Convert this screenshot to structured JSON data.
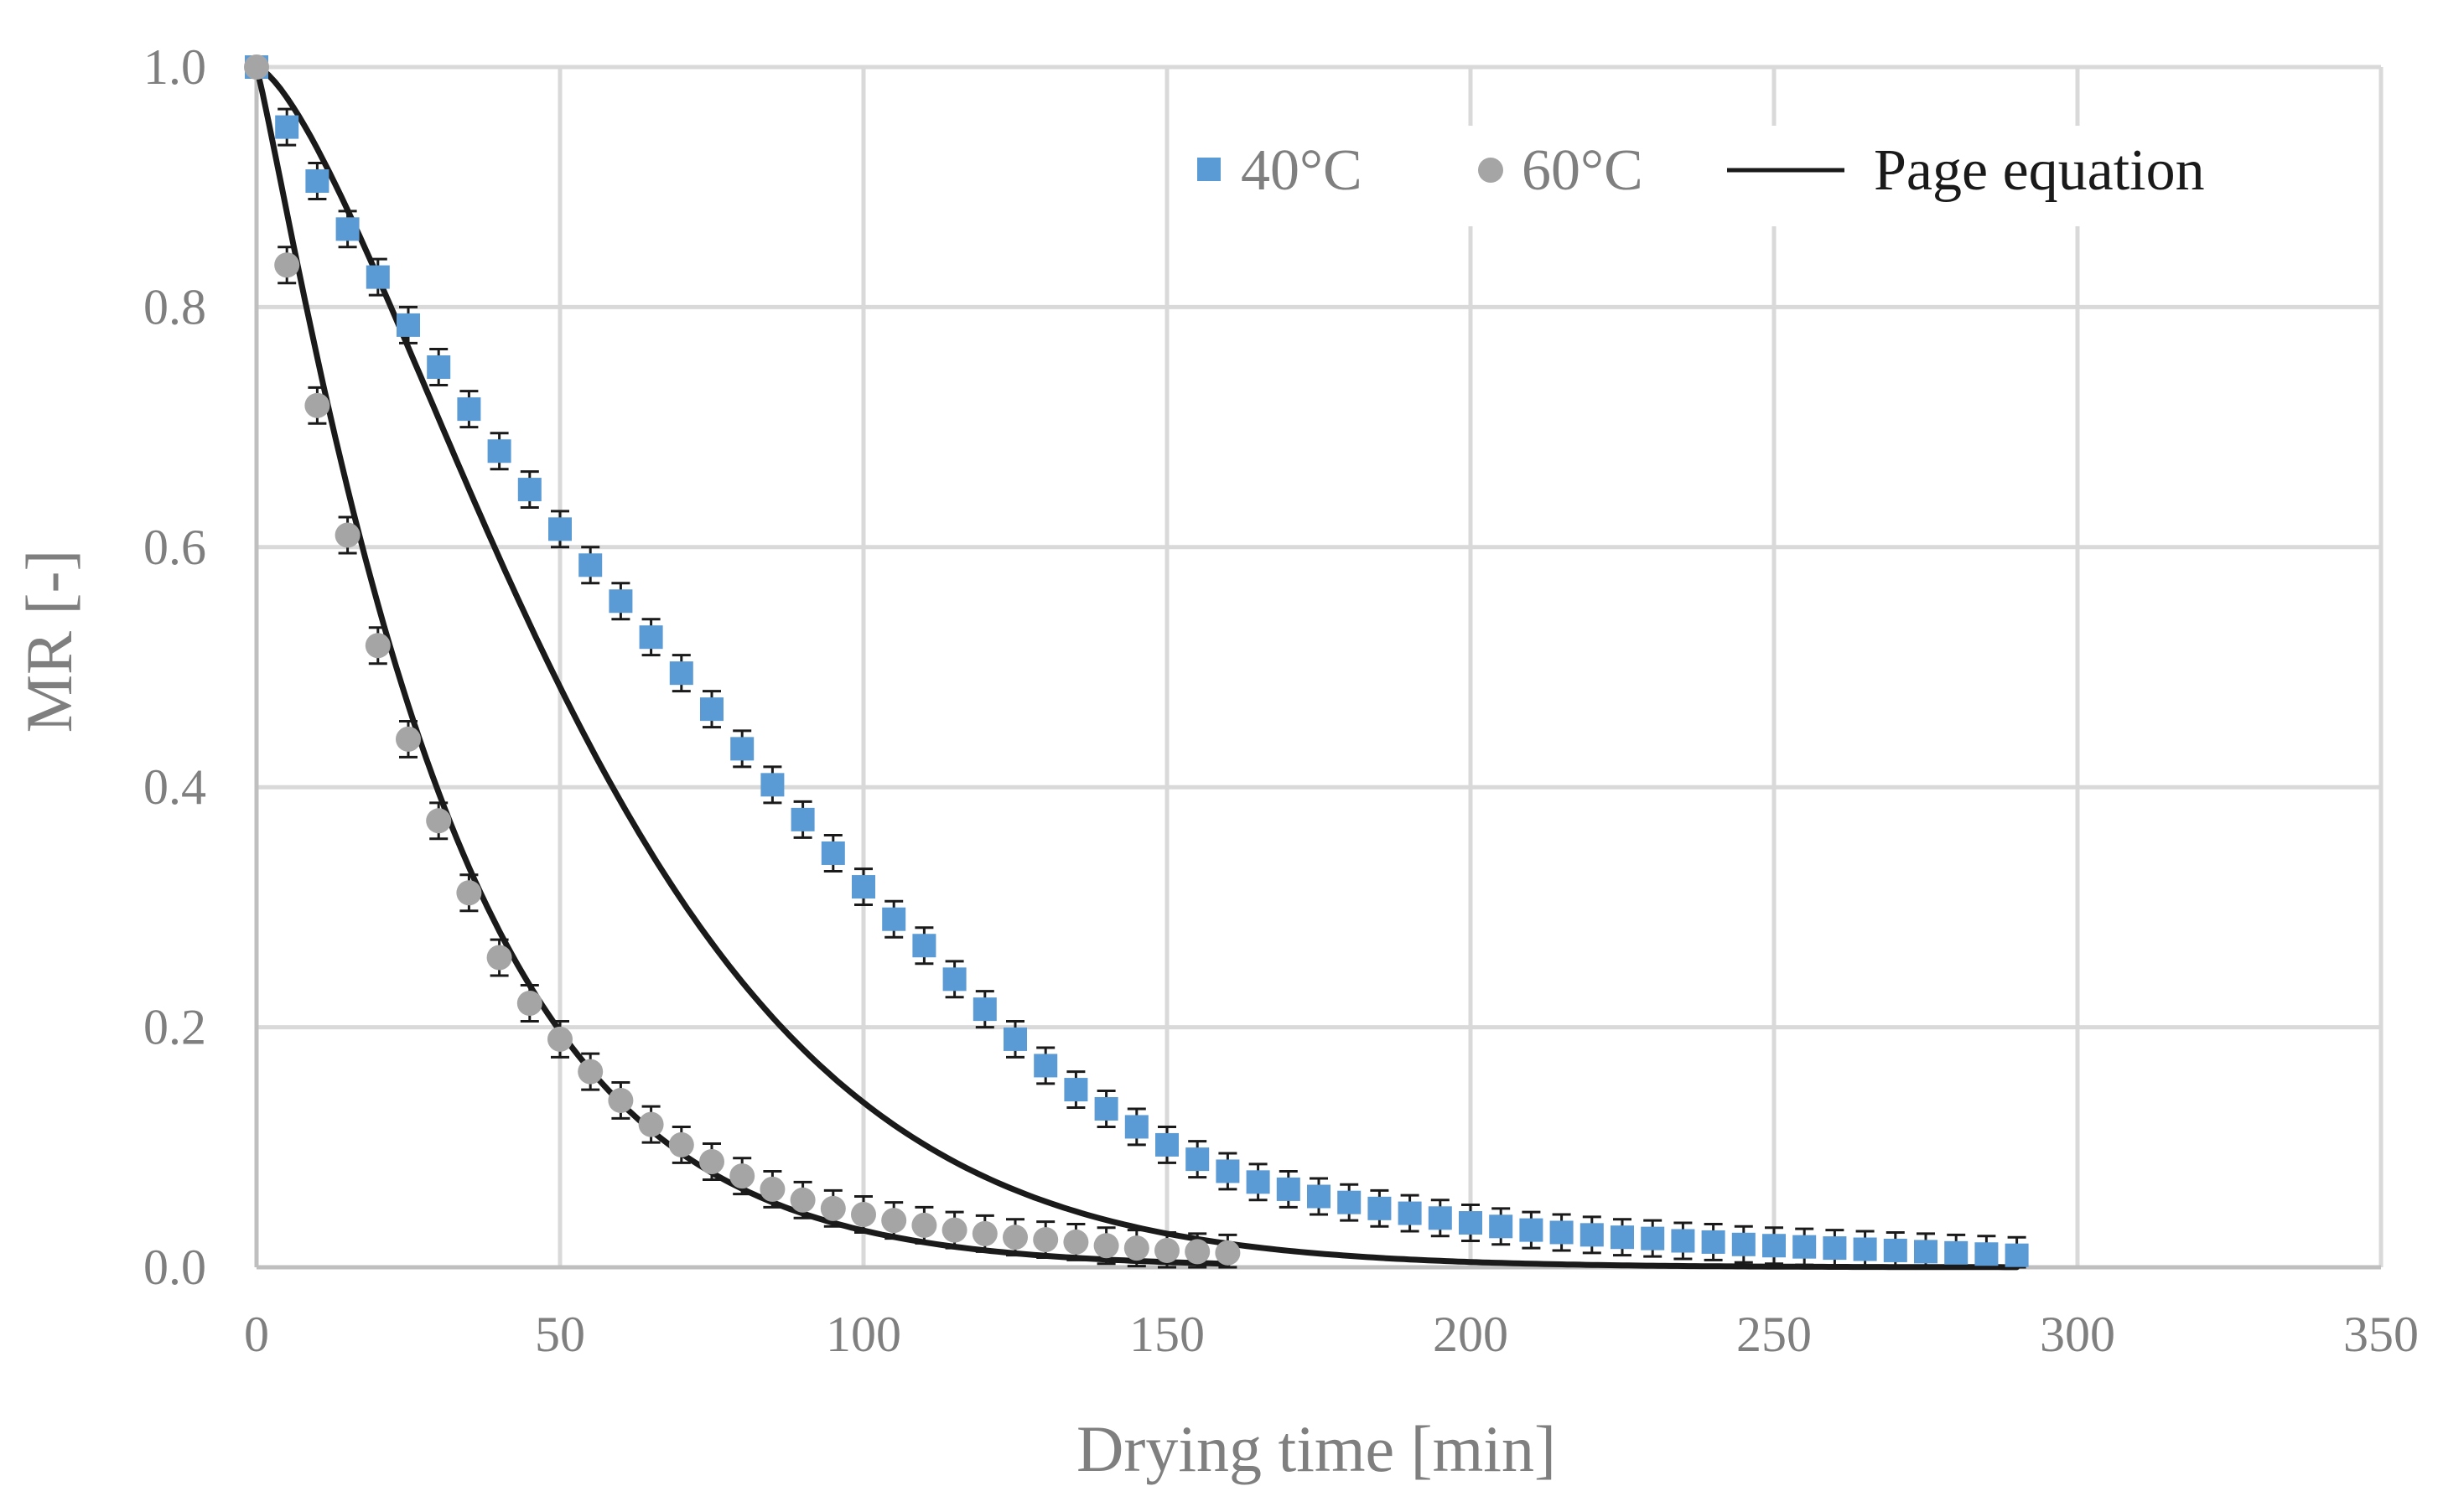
{
  "chart_data": {
    "type": "scatter",
    "title": "",
    "xlabel": "Drying time [min]",
    "ylabel": "MR [-]",
    "xlim": [
      0,
      350
    ],
    "ylim": [
      0,
      1.0
    ],
    "x_ticks": [
      0,
      50,
      100,
      150,
      200,
      250,
      300,
      350
    ],
    "y_ticks": [
      0.0,
      0.2,
      0.4,
      0.6,
      0.8,
      1.0
    ],
    "x_tick_labels": [
      "0",
      "50",
      "100",
      "150",
      "200",
      "250",
      "300",
      "350"
    ],
    "y_tick_labels": [
      "0.0",
      "0.2",
      "0.4",
      "0.6",
      "0.8",
      "1.0"
    ],
    "grid": true,
    "legend_position": "top-right",
    "legend": [
      "40°C",
      "60°C",
      "Page equation"
    ],
    "series": [
      {
        "name": "40°C",
        "marker": "square",
        "color": "#5b9bd5",
        "x": [
          0,
          5,
          10,
          15,
          20,
          25,
          30,
          35,
          40,
          45,
          50,
          55,
          60,
          65,
          70,
          75,
          80,
          85,
          90,
          95,
          100,
          105,
          110,
          115,
          120,
          125,
          130,
          135,
          140,
          145,
          150,
          155,
          160,
          165,
          170,
          175,
          180,
          185,
          190,
          195,
          200,
          205,
          210,
          215,
          220,
          225,
          230,
          235,
          240,
          245,
          250,
          255,
          260,
          265,
          270,
          275,
          280,
          285,
          290
        ],
        "y": [
          1.0,
          0.95,
          0.905,
          0.865,
          0.825,
          0.785,
          0.75,
          0.715,
          0.68,
          0.648,
          0.615,
          0.585,
          0.555,
          0.525,
          0.495,
          0.465,
          0.432,
          0.402,
          0.373,
          0.345,
          0.317,
          0.29,
          0.268,
          0.24,
          0.215,
          0.19,
          0.168,
          0.148,
          0.132,
          0.117,
          0.102,
          0.09,
          0.08,
          0.071,
          0.065,
          0.059,
          0.054,
          0.049,
          0.045,
          0.041,
          0.037,
          0.034,
          0.031,
          0.029,
          0.027,
          0.025,
          0.024,
          0.022,
          0.021,
          0.019,
          0.018,
          0.017,
          0.016,
          0.015,
          0.014,
          0.013,
          0.012,
          0.011,
          0.01
        ],
        "error": 0.015
      },
      {
        "name": "60°C",
        "marker": "circle",
        "color": "#a5a5a5",
        "x": [
          0,
          5,
          10,
          15,
          20,
          25,
          30,
          35,
          40,
          45,
          50,
          55,
          60,
          65,
          70,
          75,
          80,
          85,
          90,
          95,
          100,
          105,
          110,
          115,
          120,
          125,
          130,
          135,
          140,
          145,
          150,
          155,
          160
        ],
        "y": [
          1.0,
          0.835,
          0.718,
          0.61,
          0.518,
          0.44,
          0.372,
          0.312,
          0.258,
          0.22,
          0.19,
          0.163,
          0.139,
          0.119,
          0.102,
          0.088,
          0.076,
          0.065,
          0.056,
          0.049,
          0.044,
          0.039,
          0.035,
          0.031,
          0.028,
          0.025,
          0.023,
          0.021,
          0.018,
          0.016,
          0.014,
          0.013,
          0.012
        ],
        "error": 0.015
      },
      {
        "name": "Page equation",
        "line": true,
        "color": "#1a1a1a",
        "curves": [
          {
            "for": "40°C",
            "x_max": 290,
            "k": 0.0025,
            "n": 1.45
          },
          {
            "for": "60°C",
            "x_max": 160,
            "k": 0.022,
            "n": 1.1
          }
        ]
      }
    ]
  }
}
